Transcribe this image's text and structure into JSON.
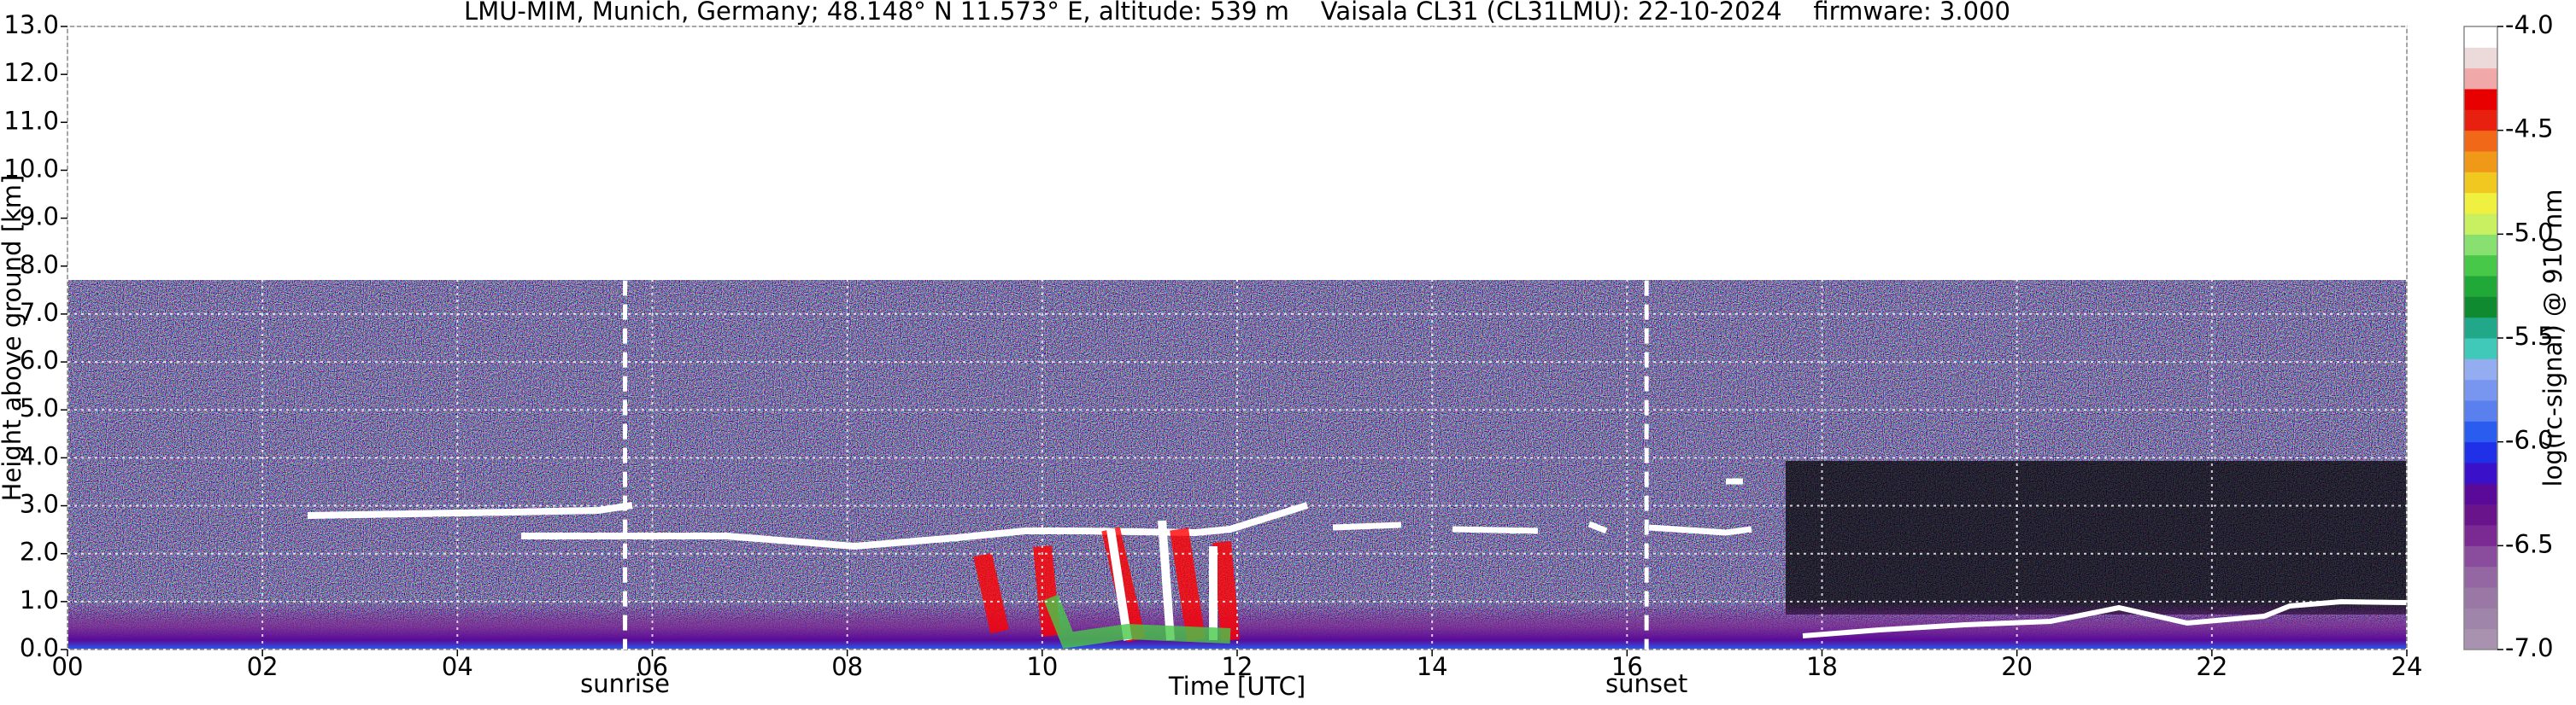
{
  "chart_data": {
    "type": "heatmap",
    "title": "LMU-MIM, Munich, Germany; 48.148° N 11.573° E, altitude: 539 m    Vaisala CL31 (CL31LMU): 22-10-2024    firmware: 3.000",
    "xlabel": "Time [UTC]",
    "ylabel": "Height above ground [km]",
    "xlim": [
      0,
      24
    ],
    "xticks": [
      {
        "value": 0,
        "label": "00"
      },
      {
        "value": 2,
        "label": "02"
      },
      {
        "value": 4,
        "label": "04"
      },
      {
        "value": 6,
        "label": "06"
      },
      {
        "value": 8,
        "label": "08"
      },
      10,
      12,
      14,
      16,
      18,
      20,
      22,
      24
    ],
    "ylim": [
      0,
      13
    ],
    "yticks": [
      {
        "value": 0,
        "label": "0.0"
      },
      {
        "value": 1,
        "label": "1.0"
      },
      {
        "value": 2,
        "label": "2.0"
      },
      {
        "value": 3,
        "label": "3.0"
      },
      {
        "value": 4,
        "label": "4.0"
      },
      {
        "value": 5,
        "label": "5.0"
      },
      {
        "value": 6,
        "label": "6.0"
      },
      {
        "value": 7,
        "label": "7.0"
      },
      {
        "value": 8,
        "label": "8.0"
      },
      {
        "value": 9,
        "label": "9.0"
      },
      {
        "value": 10,
        "label": "10.0"
      },
      {
        "value": 11,
        "label": "11.0"
      },
      {
        "value": 12,
        "label": "12.0"
      },
      {
        "value": 13,
        "label": "13.0"
      }
    ],
    "grid": true,
    "annotations": [
      {
        "text": "sunrise",
        "x": 5.72
      },
      {
        "text": "sunset",
        "x": 16.2
      }
    ],
    "colorbar": {
      "label": "log(rc-signal) @ 910 nm",
      "clim": [
        -7,
        -4
      ],
      "ticks": [
        {
          "value": -7,
          "label": "-7.0"
        },
        {
          "value": -6.5,
          "label": "-6.5"
        },
        {
          "value": -6,
          "label": "-6.0"
        },
        {
          "value": -5.5,
          "label": "-5.5"
        },
        {
          "value": -5,
          "label": "-5.0"
        },
        {
          "value": -4.5,
          "label": "-4.5"
        },
        {
          "value": -4,
          "label": "-4.0"
        }
      ],
      "colors": [
        "#a892b0",
        "#a085ab",
        "#9a78a6",
        "#9466a2",
        "#8a4c9c",
        "#7a2a92",
        "#6a148c",
        "#5a0a98",
        "#3a10c8",
        "#2030e8",
        "#2a5cf0",
        "#5a80f0",
        "#7896f0",
        "#94acf0",
        "#40c8b8",
        "#20a888",
        "#108a30",
        "#20a838",
        "#48c848",
        "#88e070",
        "#c8f060",
        "#f0f040",
        "#f0c820",
        "#f09818",
        "#f06818",
        "#e82010",
        "#e80000",
        "#f0a8a8",
        "#ecdada",
        "#ffffff"
      ]
    }
  }
}
